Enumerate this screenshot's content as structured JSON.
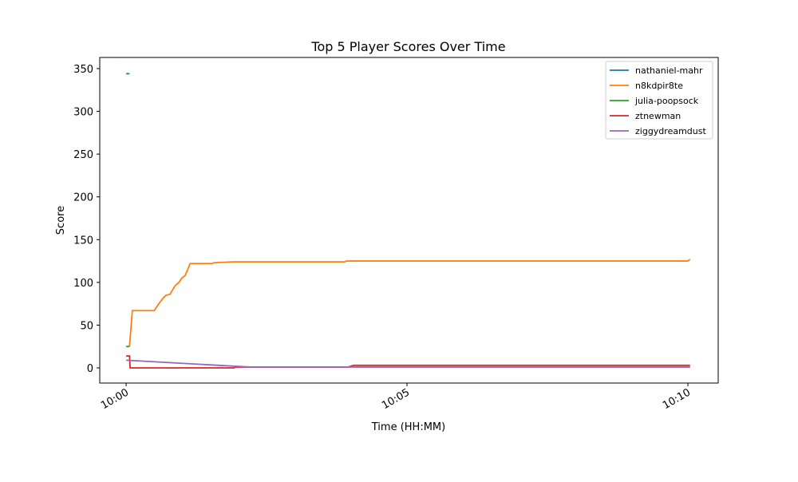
{
  "chart_data": {
    "type": "line",
    "title": "Top 5 Player Scores Over Time",
    "x_label": "Time (HH:MM)",
    "y_label": "Score",
    "xlim": [
      -0.47,
      10.54
    ],
    "ylim": [
      -17.7,
      363
    ],
    "xticks": [
      {
        "value": 0,
        "label": "10:00"
      },
      {
        "value": 5,
        "label": "10:05"
      },
      {
        "value": 10,
        "label": "10:10"
      }
    ],
    "yticks": [
      0,
      50,
      100,
      150,
      200,
      250,
      300,
      350
    ],
    "legend": "upper right",
    "series": [
      {
        "name": "nathaniel-mahr",
        "color": "#1f77b4",
        "x": [
          0,
          0.06
        ],
        "values": [
          344,
          344
        ]
      },
      {
        "name": "n8kdpir8te",
        "color": "#ff7f0e",
        "x": [
          0.06,
          0.11,
          0.5,
          0.57,
          0.65,
          0.71,
          0.78,
          0.87,
          0.94,
          0.99,
          1.05,
          1.14,
          1.53,
          1.56,
          1.9,
          3.89,
          3.92,
          10.0,
          10.04
        ],
        "values": [
          25,
          67,
          67,
          74,
          81,
          85,
          86,
          96,
          100,
          105,
          108,
          122,
          122,
          123,
          124,
          124,
          125,
          125,
          127
        ]
      },
      {
        "name": "julia-poopsock",
        "color": "#2ca02c",
        "x": [
          0,
          0.06
        ],
        "values": [
          25,
          25
        ]
      },
      {
        "name": "ztnewman",
        "color": "#d62728",
        "x": [
          0,
          0.06,
          0.07,
          1.92,
          1.95,
          3.95,
          4.05,
          10.04
        ],
        "values": [
          14,
          14,
          0,
          0,
          1,
          1,
          3,
          3
        ]
      },
      {
        "name": "ziggydreamdust",
        "color": "#9467bd",
        "x": [
          0,
          2.2,
          3.9,
          10.04
        ],
        "values": [
          9,
          1,
          1,
          1
        ]
      }
    ]
  }
}
